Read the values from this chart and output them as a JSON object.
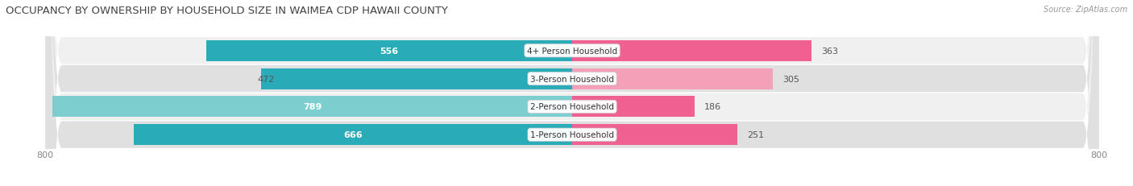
{
  "title": "OCCUPANCY BY OWNERSHIP BY HOUSEHOLD SIZE IN WAIMEA CDP HAWAII COUNTY",
  "source": "Source: ZipAtlas.com",
  "categories": [
    "1-Person Household",
    "2-Person Household",
    "3-Person Household",
    "4+ Person Household"
  ],
  "owner_values": [
    666,
    789,
    472,
    556
  ],
  "renter_values": [
    251,
    186,
    305,
    363
  ],
  "owner_color_dark": "#2AACB8",
  "owner_color_light": "#7DCFCF",
  "renter_color_dark": "#F06090",
  "renter_color_light": "#F4A0B8",
  "row_bg_colors": [
    "#F0F0F0",
    "#E0E0E0"
  ],
  "x_min": -800,
  "x_max": 800,
  "label_fontsize": 8,
  "cat_label_fontsize": 7.5,
  "legend_fontsize": 8,
  "title_fontsize": 9.5,
  "figsize": [
    14.06,
    2.32
  ],
  "dpi": 100
}
